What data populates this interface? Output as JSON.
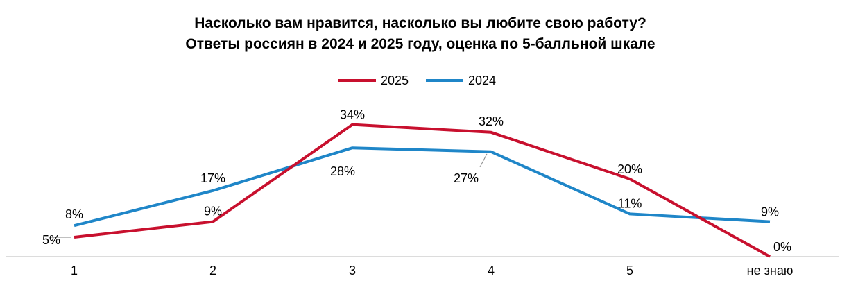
{
  "chart_data": {
    "type": "line",
    "title": "Насколько вам нравится, насколько вы любите свою работу?",
    "subtitle": "Ответы россиян в 2024 и 2025 году, оценка по 5-балльной шкале",
    "categories": [
      "1",
      "2",
      "3",
      "4",
      "5",
      "не знаю"
    ],
    "series": [
      {
        "name": "2025",
        "color": "#c8102e",
        "values": [
          5,
          9,
          34,
          32,
          20,
          0
        ]
      },
      {
        "name": "2024",
        "color": "#1f86c8",
        "values": [
          8,
          17,
          28,
          27,
          11,
          9
        ]
      }
    ],
    "labels": {
      "2025": [
        "5%",
        "9%",
        "34%",
        "32%",
        "20%",
        "0%"
      ],
      "2024": [
        "8%",
        "17%",
        "28%",
        "27%",
        "11%",
        "9%"
      ]
    },
    "ylim": [
      0,
      40
    ],
    "grid": false,
    "legend_position": "top-center"
  }
}
